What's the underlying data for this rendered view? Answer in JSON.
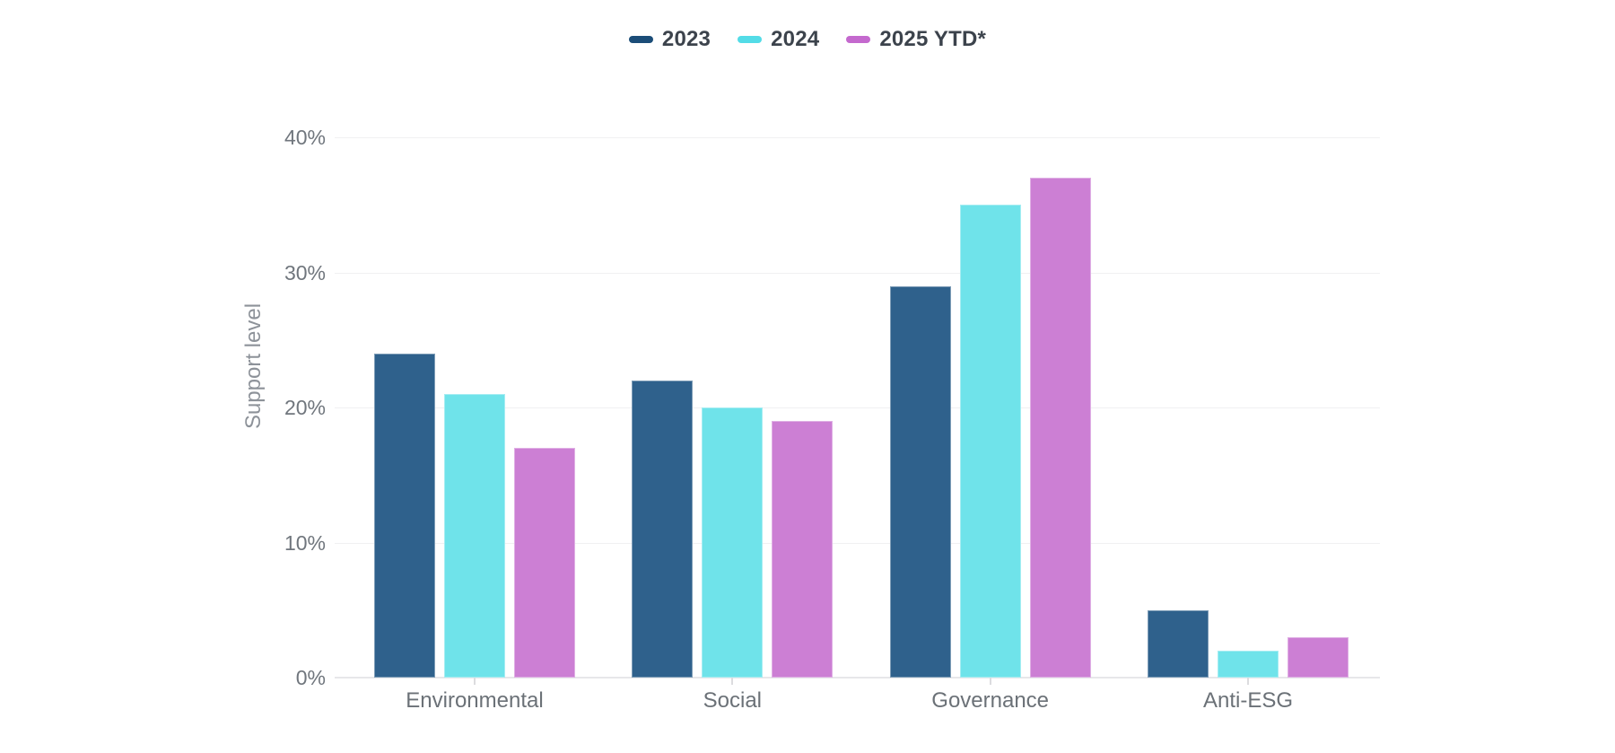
{
  "legend": {
    "items": [
      {
        "label": "2023",
        "color": "#1b4d78"
      },
      {
        "label": "2024",
        "color": "#53dce7"
      },
      {
        "label": "2025 YTD*",
        "color": "#c469ce"
      }
    ]
  },
  "y_axis": {
    "title": "Support level",
    "tick_labels": [
      "0%",
      "10%",
      "20%",
      "30%",
      "40%"
    ]
  },
  "colors": {
    "background": "#ffffff",
    "gridline": "#f0f0f2",
    "baseline": "#e7e7ea",
    "tick_text": "#70767d",
    "category_text": "#6b7177",
    "legend_text": "#3c434c",
    "axis_title_text": "#8d9299"
  },
  "chart_data": {
    "type": "bar",
    "title": "",
    "categories": [
      "Environmental",
      "Social",
      "Governance",
      "Anti-ESG"
    ],
    "series": [
      {
        "name": "2023",
        "legend_color": "#1b4d78",
        "bar_color": "#2f618c",
        "values": [
          24,
          22,
          29,
          5
        ]
      },
      {
        "name": "2024",
        "legend_color": "#53dce7",
        "bar_color": "#6fe3ea",
        "values": [
          21,
          20,
          35,
          2
        ]
      },
      {
        "name": "2025 YTD*",
        "legend_color": "#c469ce",
        "bar_color": "#cc7fd4",
        "values": [
          17,
          19,
          37,
          3
        ]
      }
    ],
    "ylabel": "Support level",
    "ylim": [
      0,
      40
    ],
    "yticks": [
      0,
      10,
      20,
      30,
      40
    ],
    "unit": "%",
    "grid": true,
    "legend_position": "top"
  }
}
